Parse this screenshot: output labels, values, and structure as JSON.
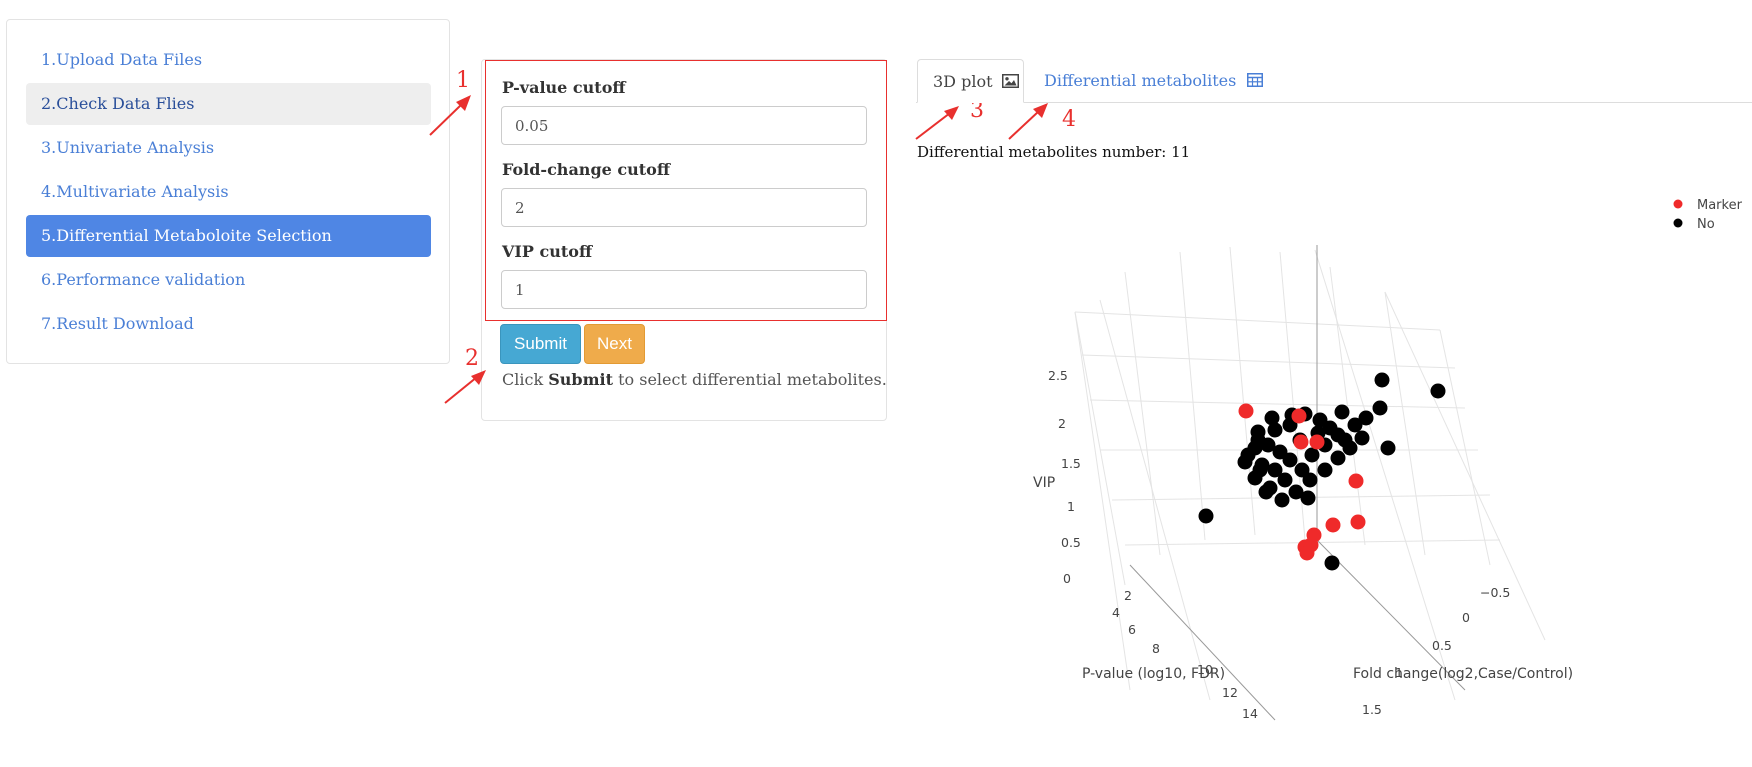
{
  "sidebar": {
    "items": [
      {
        "label": "1.Upload Data Files",
        "state": "normal"
      },
      {
        "label": "2.Check Data Flies",
        "state": "hover"
      },
      {
        "label": "3.Univariate Analysis",
        "state": "normal"
      },
      {
        "label": "4.Multivariate Analysis",
        "state": "normal"
      },
      {
        "label": "5.Differential Metaboloite Selection",
        "state": "active"
      },
      {
        "label": "6.Performance validation",
        "state": "normal"
      },
      {
        "label": "7.Result Download",
        "state": "normal"
      }
    ]
  },
  "form": {
    "pvalue_label": "P-value cutoff",
    "pvalue_value": "0.05",
    "fc_label": "Fold-change cutoff",
    "fc_value": "2",
    "vip_label": "VIP cutoff",
    "vip_value": "1",
    "submit_label": "Submit",
    "next_label": "Next",
    "help_prefix": "Click ",
    "help_bold": "Submit",
    "help_suffix": " to select differential metabolites."
  },
  "annotations": [
    "1",
    "2",
    "3",
    "4"
  ],
  "tabs": {
    "plot_label": "3D plot",
    "plot_icon": "image-icon",
    "diff_label": "Differential metabolites",
    "diff_icon": "table-icon"
  },
  "result": {
    "count_text": "Differential metabolites number: 11"
  },
  "colors": {
    "marker": "#ef2a2a",
    "no": "#000000",
    "active_nav": "#4f86e4",
    "annotation": "#e8302e"
  },
  "chart_data": {
    "type": "scatter",
    "dimensions": 3,
    "legend": [
      {
        "name": "Marker",
        "color": "#ef2a2a"
      },
      {
        "name": "No",
        "color": "#000000"
      }
    ],
    "legend_position": "top-right",
    "axes": {
      "x": {
        "label": "Fold change(log2,Case/Control)",
        "ticks": [
          "−0.5",
          "0",
          "0.5",
          "1",
          "1.5"
        ]
      },
      "y": {
        "label": "P-value (log10, FDR)",
        "ticks": [
          "2",
          "4",
          "6",
          "8",
          "10",
          "12",
          "14"
        ]
      },
      "z": {
        "label": "VIP",
        "ticks": [
          "0",
          "0.5",
          "1",
          "1.5",
          "2",
          "2.5"
        ]
      }
    },
    "grid": true,
    "series": [
      {
        "name": "Marker",
        "count": 11
      },
      {
        "name": "No"
      }
    ]
  }
}
